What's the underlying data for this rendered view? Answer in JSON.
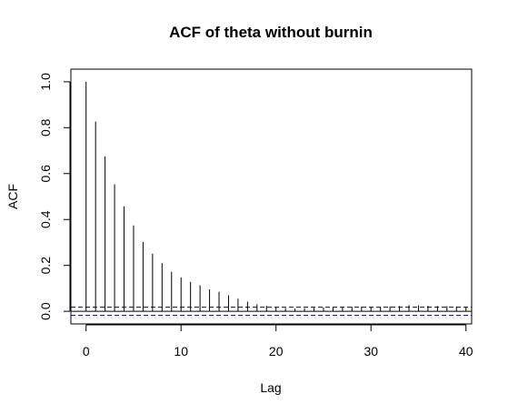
{
  "chart_data": {
    "type": "bar",
    "title": "ACF of theta without burnin",
    "xlabel": "Lag",
    "ylabel": "ACF",
    "xlim": [
      -1.6,
      40.6
    ],
    "ylim": [
      -0.055,
      1.055
    ],
    "x_ticks": [
      "0",
      "10",
      "20",
      "30",
      "40"
    ],
    "y_ticks": [
      "0.0",
      "0.2",
      "0.4",
      "0.6",
      "0.8",
      "1.0"
    ],
    "confidence_bound": 0.018,
    "confidence_color": "#00008b",
    "spike_color": "#000000",
    "grid": false,
    "series": [
      {
        "x": [
          0,
          1,
          2,
          3,
          4,
          5,
          6,
          7,
          8,
          9,
          10,
          11,
          12,
          13,
          14,
          15,
          16,
          17,
          18,
          19,
          20,
          21,
          22,
          23,
          24,
          25,
          26,
          27,
          28,
          29,
          30,
          31,
          32,
          33,
          34,
          35,
          36,
          37,
          38,
          39,
          40
        ],
        "values": [
          1.0,
          0.826,
          0.675,
          0.553,
          0.457,
          0.374,
          0.302,
          0.251,
          0.21,
          0.172,
          0.148,
          0.128,
          0.113,
          0.096,
          0.085,
          0.07,
          0.055,
          0.042,
          0.031,
          0.024,
          0.018,
          0.014,
          0.012,
          0.013,
          0.015,
          0.017,
          0.018,
          0.018,
          0.019,
          0.02,
          0.019,
          0.02,
          0.021,
          0.023,
          0.027,
          0.026,
          0.024,
          0.023,
          0.022,
          0.021,
          0.02
        ]
      }
    ]
  }
}
